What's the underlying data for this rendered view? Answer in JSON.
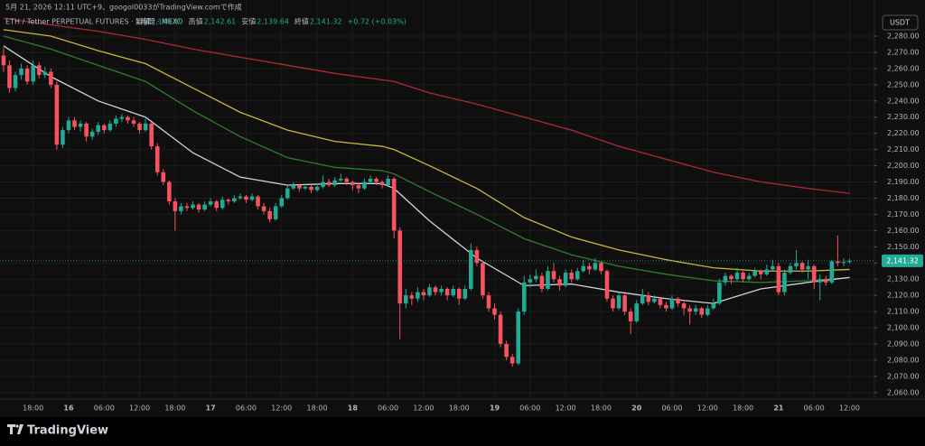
{
  "header": {
    "created": "5月 21, 2026 12:11 UTC+9、googol0033がTradingView.comで作成",
    "symbol": "ETH / Tether PERPETUAL FUTURES · 1時間 · MEXC",
    "open_label": "始値",
    "open": "2,140.59",
    "high_label": "高値",
    "high": "2,142.61",
    "low_label": "安値",
    "low": "2,139.64",
    "close_label": "終値",
    "close": "2,141.32",
    "change": "+0.72 (+0.03%)"
  },
  "currency": "USDT",
  "last_price_label": "2,141.32",
  "footer": {
    "brand": "TradingView"
  },
  "chart_data": {
    "type": "candlestick",
    "up_color": "#22ab94",
    "down_color": "#f7525f",
    "xlim": [
      -0.6,
      147.2
    ],
    "ylim": [
      2056,
      2294.5
    ],
    "grid": true,
    "last_price": 2141.32,
    "xticks": [
      {
        "value": 5,
        "label": "18:00"
      },
      {
        "value": 11,
        "label": "16"
      },
      {
        "value": 17,
        "label": "06:00"
      },
      {
        "value": 23,
        "label": "12:00"
      },
      {
        "value": 29,
        "label": "18:00"
      },
      {
        "value": 35,
        "label": "17"
      },
      {
        "value": 41,
        "label": "06:00"
      },
      {
        "value": 47,
        "label": "12:00"
      },
      {
        "value": 53,
        "label": "18:00"
      },
      {
        "value": 59,
        "label": "18"
      },
      {
        "value": 65,
        "label": "06:00"
      },
      {
        "value": 71,
        "label": "12:00"
      },
      {
        "value": 77,
        "label": "18:00"
      },
      {
        "value": 83,
        "label": "19"
      },
      {
        "value": 89,
        "label": "06:00"
      },
      {
        "value": 95,
        "label": "12:00"
      },
      {
        "value": 101,
        "label": "18:00"
      },
      {
        "value": 107,
        "label": "20"
      },
      {
        "value": 113,
        "label": "06:00"
      },
      {
        "value": 119,
        "label": "12:00"
      },
      {
        "value": 125,
        "label": "18:00"
      },
      {
        "value": 131,
        "label": "21"
      },
      {
        "value": 137,
        "label": "06:00"
      },
      {
        "value": 143,
        "label": "12:00"
      }
    ],
    "yticks": [
      {
        "value": 2280,
        "label": "2,280.00"
      },
      {
        "value": 2270,
        "label": "2,270.00"
      },
      {
        "value": 2260,
        "label": "2,260.00"
      },
      {
        "value": 2250,
        "label": "2,250.00"
      },
      {
        "value": 2240,
        "label": "2,240.00"
      },
      {
        "value": 2230,
        "label": "2,230.00"
      },
      {
        "value": 2220,
        "label": "2,220.00"
      },
      {
        "value": 2210,
        "label": "2,210.00"
      },
      {
        "value": 2200,
        "label": "2,200.00"
      },
      {
        "value": 2190,
        "label": "2,190.00"
      },
      {
        "value": 2180,
        "label": "2,180.00"
      },
      {
        "value": 2170,
        "label": "2,170.00"
      },
      {
        "value": 2160,
        "label": "2,160.00"
      },
      {
        "value": 2150,
        "label": "2,150.00"
      },
      {
        "value": 2140,
        "label": "2,140.00"
      },
      {
        "value": 2130,
        "label": "2,130.00"
      },
      {
        "value": 2120,
        "label": "2,120.00"
      },
      {
        "value": 2110,
        "label": "2,110.00"
      },
      {
        "value": 2100,
        "label": "2,100.00"
      },
      {
        "value": 2090,
        "label": "2,090.00"
      },
      {
        "value": 2080,
        "label": "2,080.00"
      },
      {
        "value": 2070,
        "label": "2,070.00"
      },
      {
        "value": 2060,
        "label": "2,060.00"
      }
    ],
    "ohlc": [
      [
        2268,
        2273,
        2258,
        2262
      ],
      [
        2262,
        2265,
        2245,
        2248
      ],
      [
        2248,
        2258,
        2246,
        2256
      ],
      [
        2256,
        2263,
        2253,
        2260
      ],
      [
        2260,
        2262,
        2250,
        2252
      ],
      [
        2252,
        2265,
        2250,
        2262
      ],
      [
        2262,
        2264,
        2254,
        2256
      ],
      [
        2256,
        2261,
        2254,
        2258
      ],
      [
        2258,
        2260,
        2248,
        2250
      ],
      [
        2250,
        2252,
        2210,
        2213
      ],
      [
        2213,
        2224,
        2211,
        2222
      ],
      [
        2222,
        2230,
        2220,
        2228
      ],
      [
        2228,
        2230,
        2222,
        2224
      ],
      [
        2224,
        2228,
        2221,
        2226
      ],
      [
        2226,
        2227,
        2215,
        2218
      ],
      [
        2218,
        2223,
        2216,
        2221
      ],
      [
        2221,
        2227,
        2219,
        2225
      ],
      [
        2225,
        2226,
        2220,
        2222
      ],
      [
        2222,
        2228,
        2221,
        2226
      ],
      [
        2226,
        2231,
        2224,
        2229
      ],
      [
        2229,
        2232,
        2227,
        2230
      ],
      [
        2230,
        2231,
        2226,
        2228
      ],
      [
        2228,
        2230,
        2224,
        2226
      ],
      [
        2226,
        2227,
        2220,
        2222
      ],
      [
        2222,
        2229,
        2221,
        2226
      ],
      [
        2226,
        2227,
        2210,
        2212
      ],
      [
        2212,
        2214,
        2194,
        2196
      ],
      [
        2196,
        2198,
        2188,
        2190
      ],
      [
        2190,
        2191,
        2176,
        2178
      ],
      [
        2178,
        2180,
        2160,
        2172
      ],
      [
        2172,
        2177,
        2170,
        2175
      ],
      [
        2175,
        2177,
        2172,
        2174
      ],
      [
        2174,
        2178,
        2173,
        2176
      ],
      [
        2176,
        2177,
        2171,
        2173
      ],
      [
        2173,
        2178,
        2172,
        2176
      ],
      [
        2176,
        2180,
        2175,
        2178
      ],
      [
        2178,
        2179,
        2172,
        2174
      ],
      [
        2174,
        2181,
        2173,
        2179
      ],
      [
        2179,
        2180,
        2176,
        2178
      ],
      [
        2178,
        2182,
        2177,
        2180
      ],
      [
        2180,
        2183,
        2179,
        2181
      ],
      [
        2181,
        2182,
        2177,
        2179
      ],
      [
        2179,
        2183,
        2178,
        2181
      ],
      [
        2181,
        2182,
        2173,
        2175
      ],
      [
        2175,
        2177,
        2170,
        2172
      ],
      [
        2172,
        2174,
        2165,
        2167
      ],
      [
        2167,
        2177,
        2166,
        2175
      ],
      [
        2175,
        2182,
        2174,
        2180
      ],
      [
        2180,
        2188,
        2179,
        2186
      ],
      [
        2186,
        2190,
        2185,
        2188
      ],
      [
        2188,
        2189,
        2184,
        2186
      ],
      [
        2186,
        2189,
        2185,
        2187
      ],
      [
        2187,
        2188,
        2183,
        2185
      ],
      [
        2185,
        2189,
        2184,
        2187
      ],
      [
        2187,
        2194,
        2186,
        2190
      ],
      [
        2190,
        2192,
        2187,
        2188
      ],
      [
        2188,
        2193,
        2187,
        2191
      ],
      [
        2191,
        2195,
        2190,
        2192
      ],
      [
        2192,
        2193,
        2188,
        2190
      ],
      [
        2190,
        2191,
        2185,
        2188
      ],
      [
        2188,
        2189,
        2183,
        2186
      ],
      [
        2186,
        2192,
        2185,
        2190
      ],
      [
        2190,
        2194,
        2189,
        2192
      ],
      [
        2192,
        2193,
        2188,
        2190
      ],
      [
        2190,
        2191,
        2186,
        2188
      ],
      [
        2188,
        2194,
        2187,
        2192
      ],
      [
        2192,
        2193,
        2155,
        2160
      ],
      [
        2160,
        2162,
        2093,
        2115
      ],
      [
        2115,
        2124,
        2112,
        2120
      ],
      [
        2120,
        2122,
        2114,
        2118
      ],
      [
        2118,
        2125,
        2116,
        2122
      ],
      [
        2122,
        2124,
        2117,
        2120
      ],
      [
        2120,
        2127,
        2119,
        2125
      ],
      [
        2125,
        2126,
        2120,
        2122
      ],
      [
        2122,
        2126,
        2120,
        2124
      ],
      [
        2124,
        2125,
        2117,
        2120
      ],
      [
        2120,
        2126,
        2119,
        2124
      ],
      [
        2124,
        2125,
        2114,
        2118
      ],
      [
        2118,
        2126,
        2117,
        2124
      ],
      [
        2124,
        2152,
        2123,
        2148
      ],
      [
        2148,
        2150,
        2138,
        2140
      ],
      [
        2140,
        2141,
        2118,
        2120
      ],
      [
        2120,
        2122,
        2110,
        2112
      ],
      [
        2112,
        2115,
        2105,
        2108
      ],
      [
        2108,
        2110,
        2088,
        2090
      ],
      [
        2090,
        2092,
        2080,
        2082
      ],
      [
        2082,
        2084,
        2076,
        2078
      ],
      [
        2078,
        2112,
        2077,
        2110
      ],
      [
        2110,
        2132,
        2108,
        2128
      ],
      [
        2128,
        2133,
        2125,
        2130
      ],
      [
        2130,
        2136,
        2128,
        2132
      ],
      [
        2132,
        2134,
        2122,
        2124
      ],
      [
        2124,
        2138,
        2123,
        2135
      ],
      [
        2135,
        2140,
        2128,
        2130
      ],
      [
        2130,
        2132,
        2123,
        2126
      ],
      [
        2126,
        2136,
        2125,
        2134
      ],
      [
        2134,
        2136,
        2128,
        2130
      ],
      [
        2130,
        2137,
        2129,
        2135
      ],
      [
        2135,
        2142,
        2134,
        2138
      ],
      [
        2138,
        2140,
        2133,
        2136
      ],
      [
        2136,
        2143,
        2135,
        2140
      ],
      [
        2140,
        2141,
        2133,
        2135
      ],
      [
        2135,
        2136,
        2116,
        2118
      ],
      [
        2118,
        2120,
        2110,
        2112
      ],
      [
        2112,
        2122,
        2111,
        2120
      ],
      [
        2120,
        2121,
        2108,
        2110
      ],
      [
        2110,
        2112,
        2096,
        2104
      ],
      [
        2104,
        2117,
        2103,
        2115
      ],
      [
        2115,
        2124,
        2114,
        2120
      ],
      [
        2120,
        2122,
        2114,
        2116
      ],
      [
        2116,
        2120,
        2115,
        2118
      ],
      [
        2118,
        2119,
        2112,
        2114
      ],
      [
        2114,
        2116,
        2110,
        2112
      ],
      [
        2112,
        2120,
        2111,
        2118
      ],
      [
        2118,
        2119,
        2113,
        2115
      ],
      [
        2115,
        2116,
        2108,
        2112
      ],
      [
        2112,
        2114,
        2102,
        2110
      ],
      [
        2110,
        2114,
        2108,
        2112
      ],
      [
        2112,
        2113,
        2106,
        2108
      ],
      [
        2108,
        2114,
        2107,
        2112
      ],
      [
        2112,
        2118,
        2111,
        2115
      ],
      [
        2115,
        2130,
        2114,
        2128
      ],
      [
        2128,
        2134,
        2126,
        2132
      ],
      [
        2132,
        2133,
        2127,
        2130
      ],
      [
        2130,
        2137,
        2129,
        2134
      ],
      [
        2134,
        2135,
        2128,
        2130
      ],
      [
        2130,
        2134,
        2129,
        2132
      ],
      [
        2132,
        2137,
        2131,
        2135
      ],
      [
        2135,
        2136,
        2130,
        2133
      ],
      [
        2133,
        2139,
        2132,
        2136
      ],
      [
        2136,
        2142,
        2135,
        2138
      ],
      [
        2138,
        2140,
        2120,
        2122
      ],
      [
        2122,
        2136,
        2120,
        2134
      ],
      [
        2134,
        2140,
        2133,
        2138
      ],
      [
        2138,
        2148,
        2136,
        2140
      ],
      [
        2140,
        2141,
        2134,
        2136
      ],
      [
        2136,
        2142,
        2130,
        2138
      ],
      [
        2138,
        2139,
        2124,
        2128
      ],
      [
        2128,
        2133,
        2117,
        2130
      ],
      [
        2130,
        2132,
        2126,
        2128
      ],
      [
        2128,
        2142,
        2127,
        2141
      ],
      [
        2141,
        2157,
        2138,
        2140
      ],
      [
        2140,
        2143,
        2138,
        2140.59
      ],
      [
        2140.59,
        2142.61,
        2139.64,
        2141.32
      ]
    ],
    "series": [
      {
        "color": "#b22833",
        "x": [
          0,
          8,
          16,
          24,
          32,
          40,
          48,
          56,
          64,
          66,
          72,
          80,
          88,
          96,
          104,
          112,
          120,
          128,
          136,
          143
        ],
        "values": [
          2291,
          2287,
          2283,
          2278,
          2272,
          2267,
          2262,
          2257,
          2253,
          2252,
          2245,
          2238,
          2230,
          2222,
          2212,
          2204,
          2196,
          2190,
          2186,
          2183
        ]
      },
      {
        "color": "#c9b83a",
        "x": [
          0,
          8,
          16,
          24,
          32,
          40,
          48,
          56,
          64,
          66,
          72,
          80,
          88,
          96,
          104,
          112,
          120,
          128,
          136,
          143
        ],
        "values": [
          2284,
          2280,
          2271,
          2263,
          2248,
          2233,
          2222,
          2215,
          2212,
          2210,
          2200,
          2186,
          2168,
          2156,
          2148,
          2142,
          2137,
          2135,
          2135,
          2136
        ]
      },
      {
        "color": "#2e7d32",
        "x": [
          0,
          8,
          16,
          24,
          32,
          40,
          48,
          56,
          64,
          66,
          72,
          80,
          88,
          96,
          104,
          112,
          120,
          128,
          136,
          143
        ],
        "values": [
          2280,
          2272,
          2262,
          2252,
          2234,
          2218,
          2205,
          2199,
          2197,
          2195,
          2184,
          2170,
          2155,
          2145,
          2138,
          2133,
          2129,
          2128,
          2129,
          2131
        ]
      },
      {
        "color": "#d1d4dc",
        "x": [
          0,
          8,
          16,
          24,
          32,
          40,
          48,
          56,
          64,
          66,
          72,
          80,
          88,
          96,
          104,
          112,
          120,
          128,
          136,
          143
        ],
        "values": [
          2274,
          2255,
          2240,
          2230,
          2208,
          2193,
          2188,
          2189,
          2189,
          2186,
          2166,
          2143,
          2126,
          2127,
          2122,
          2118,
          2115,
          2124,
          2128,
          2131
        ]
      }
    ]
  }
}
